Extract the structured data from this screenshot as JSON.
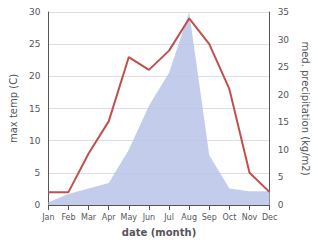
{
  "chart_data": {
    "type": "line",
    "xlabel": "date (month)",
    "ylabel": "max temp (C)",
    "y2label": "med. precipitation (kg/m2)",
    "categories": [
      "Jan",
      "Feb",
      "Mar",
      "Apr",
      "May",
      "Jun",
      "Jul",
      "Aug",
      "Sep",
      "Oct",
      "Nov",
      "Dec"
    ],
    "series": [
      {
        "type": "area",
        "color": "#b8c4e8",
        "axis": "y2",
        "values": [
          0.5,
          2,
          3,
          4,
          10,
          18,
          24,
          35,
          9,
          3,
          2.5,
          2.5
        ]
      },
      {
        "type": "line",
        "color": "#c0504d",
        "values": [
          2,
          2,
          8,
          13,
          23,
          21,
          24,
          29,
          25,
          18,
          5,
          2
        ]
      }
    ],
    "ylim": [
      0,
      30
    ],
    "yticks": [
      0,
      5,
      10,
      15,
      20,
      25,
      30
    ],
    "y2lim": [
      0,
      35
    ],
    "y2ticks": [
      0,
      5,
      10,
      15,
      20,
      25,
      30,
      35
    ],
    "grid": true
  }
}
